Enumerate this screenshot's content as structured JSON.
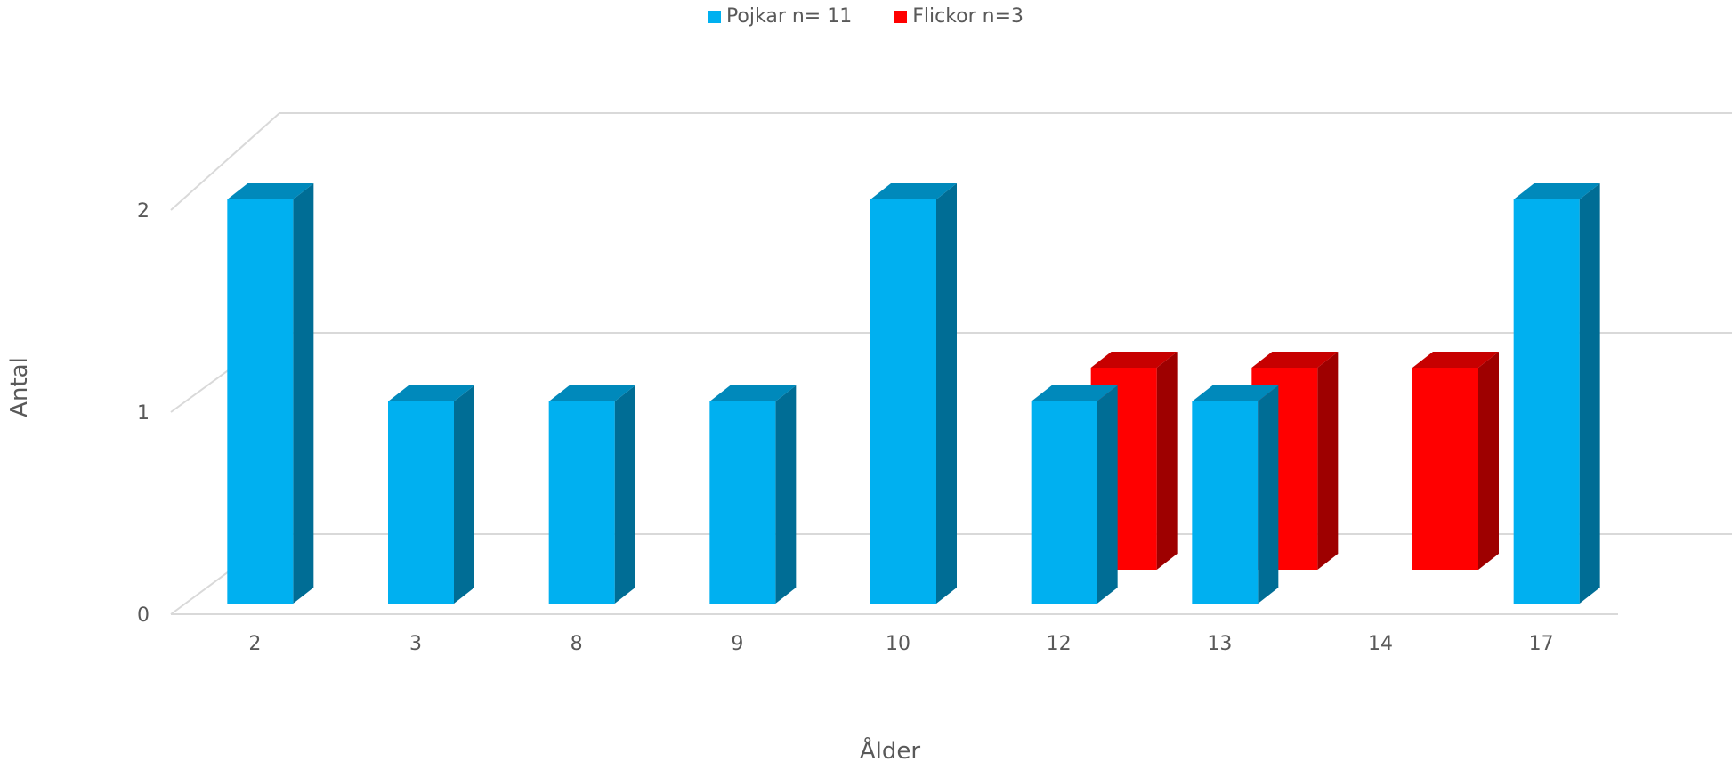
{
  "chart_data": {
    "type": "bar",
    "title": "",
    "xlabel": "Ålder",
    "ylabel": "Antal",
    "categories": [
      "2",
      "3",
      "8",
      "9",
      "10",
      "12",
      "13",
      "14",
      "17"
    ],
    "ylim": [
      0,
      2
    ],
    "yticks": [
      "0",
      "1",
      "2"
    ],
    "grid": true,
    "legend_position": "top",
    "series": [
      {
        "name": "Pojkar n= 11",
        "color": "#00B0F0",
        "values": [
          2,
          1,
          1,
          1,
          2,
          1,
          1,
          0,
          2
        ]
      },
      {
        "name": "Flickor n=3",
        "color": "#FF0000",
        "values": [
          0,
          0,
          0,
          0,
          0,
          1,
          1,
          1,
          0
        ]
      }
    ]
  }
}
